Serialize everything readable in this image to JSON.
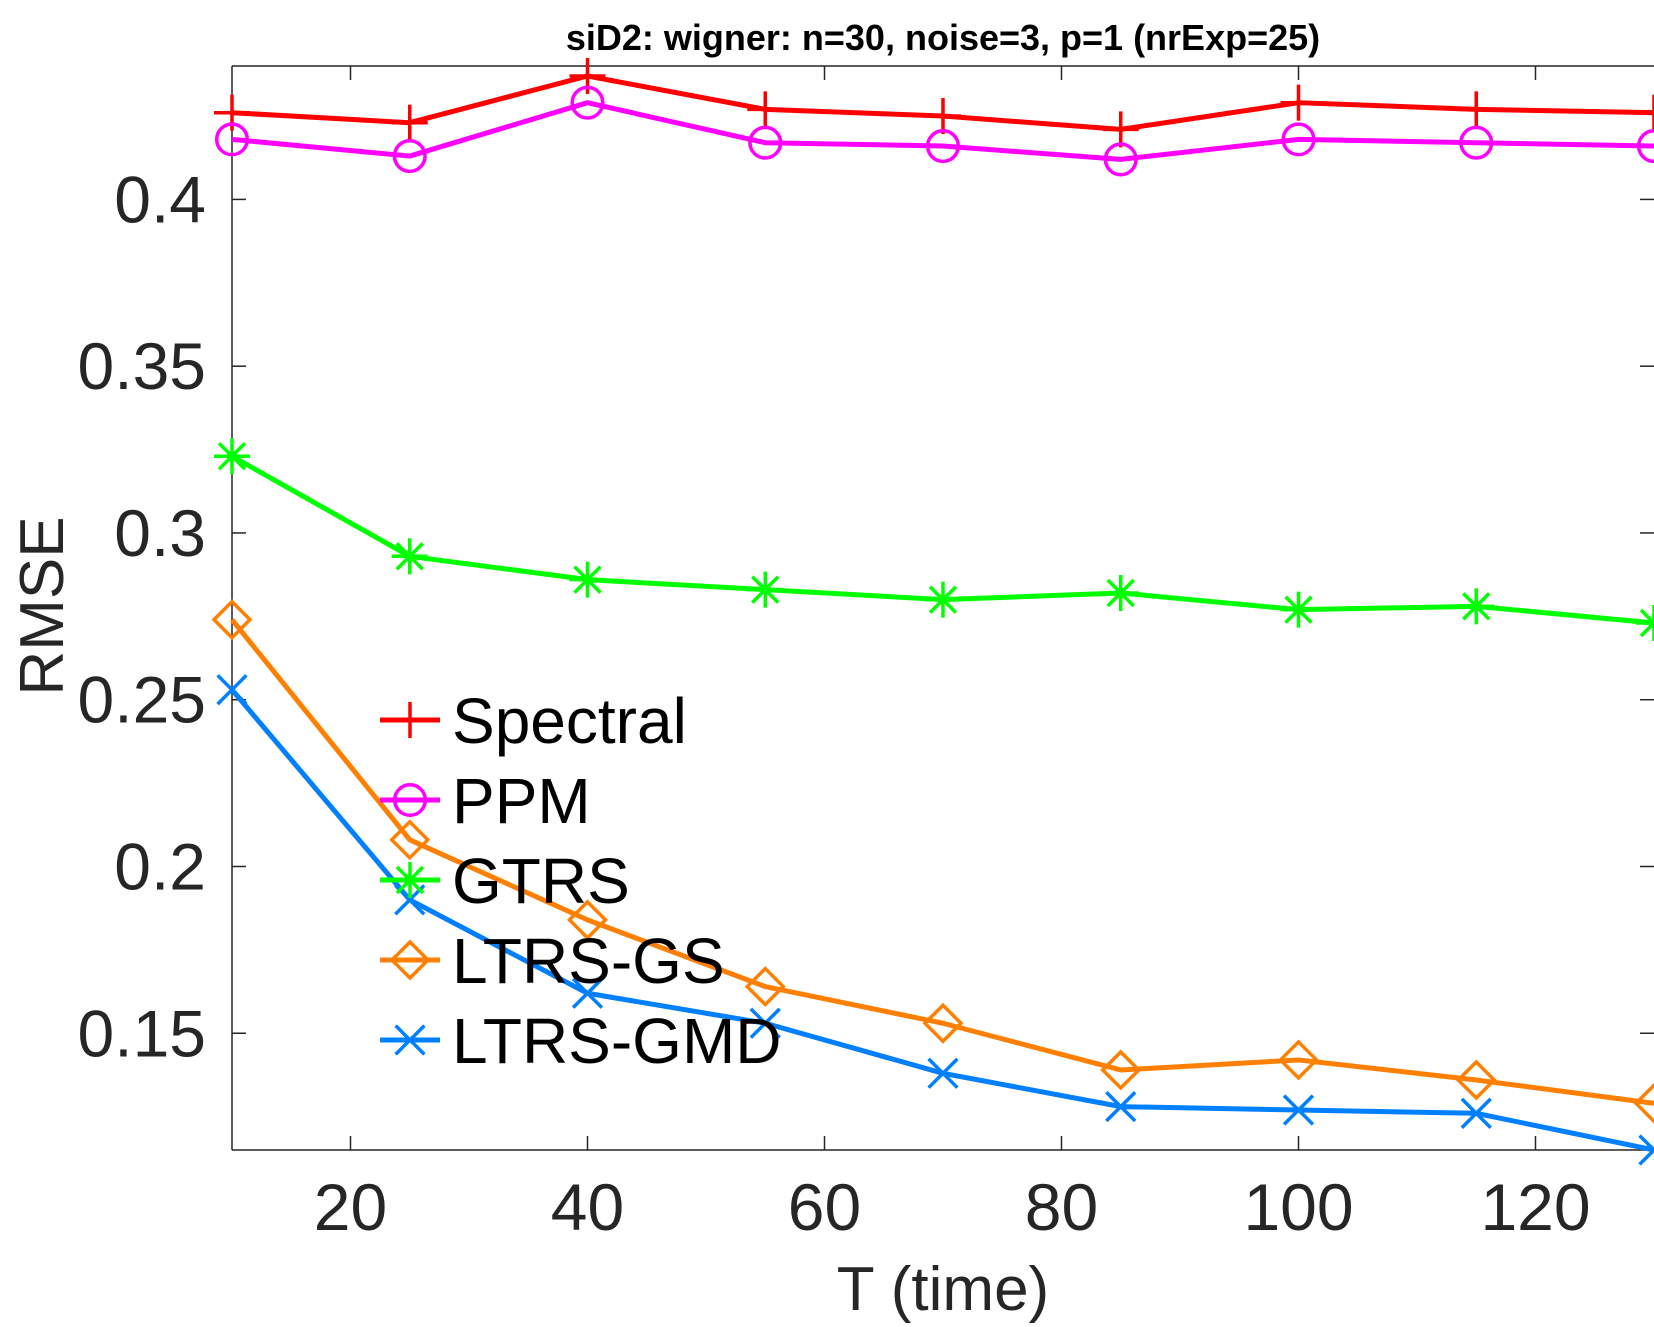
{
  "chart_data": {
    "type": "line",
    "title": "siD2: wigner: n=30, noise=3, p=1 (nrExp=25)",
    "xlabel": "T (time)",
    "ylabel": "RMSE",
    "x": [
      10,
      25,
      40,
      55,
      70,
      85,
      100,
      115,
      130
    ],
    "xlim": [
      10,
      130
    ],
    "ylim": [
      0.115,
      0.44
    ],
    "xticks": [
      20,
      40,
      60,
      80,
      100,
      120
    ],
    "yticks": [
      0.15,
      0.2,
      0.25,
      0.3,
      0.35,
      0.4
    ],
    "xtick_labels": [
      "20",
      "40",
      "60",
      "80",
      "100",
      "120"
    ],
    "ytick_labels": [
      "0.15",
      "0.2",
      "0.25",
      "0.3",
      "0.35",
      "0.4"
    ],
    "grid": false,
    "legend_placement": "left-middle",
    "series": [
      {
        "name": "Spectral",
        "color": "#ff0000",
        "marker": "plus",
        "values": [
          0.426,
          0.423,
          0.437,
          0.427,
          0.425,
          0.421,
          0.429,
          0.427,
          0.426
        ]
      },
      {
        "name": "PPM",
        "color": "#ff00ff",
        "marker": "circle",
        "values": [
          0.418,
          0.413,
          0.429,
          0.417,
          0.416,
          0.412,
          0.418,
          0.417,
          0.416
        ]
      },
      {
        "name": "GTRS",
        "color": "#00ff00",
        "marker": "asterisk",
        "values": [
          0.323,
          0.293,
          0.286,
          0.283,
          0.28,
          0.282,
          0.277,
          0.278,
          0.273
        ]
      },
      {
        "name": "LTRS-GS",
        "color": "#ff7f00",
        "marker": "diamond",
        "values": [
          0.274,
          0.208,
          0.184,
          0.164,
          0.153,
          0.139,
          0.142,
          0.136,
          0.129
        ]
      },
      {
        "name": "LTRS-GMD",
        "color": "#0080ff",
        "marker": "x",
        "values": [
          0.253,
          0.19,
          0.162,
          0.153,
          0.138,
          0.128,
          0.127,
          0.126,
          0.115
        ]
      }
    ]
  }
}
